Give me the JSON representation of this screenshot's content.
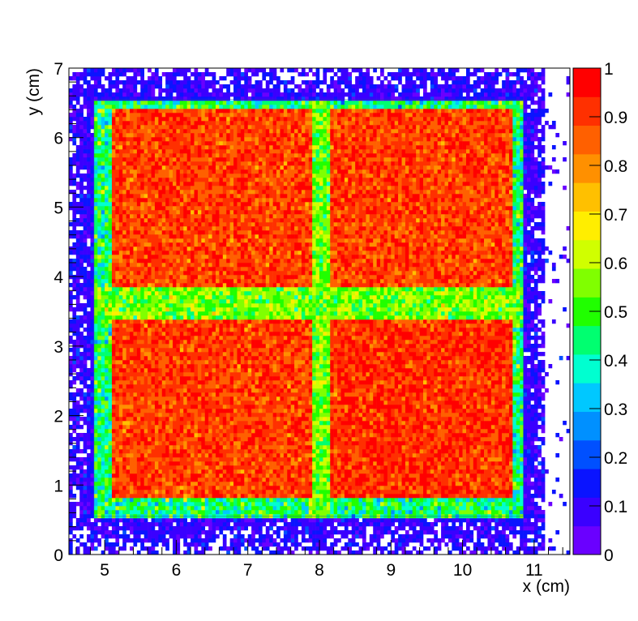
{
  "chart_data": {
    "type": "heatmap",
    "title": "",
    "xlabel": "x (cm)",
    "ylabel": "y (cm)",
    "xlim": [
      4.5,
      11.5
    ],
    "ylim": [
      0,
      7
    ],
    "x_ticks": [
      5,
      6,
      7,
      8,
      9,
      10,
      11
    ],
    "y_ticks": [
      0,
      1,
      2,
      3,
      4,
      5,
      6,
      7
    ],
    "zlim": [
      0,
      1
    ],
    "colorbar_ticks": [
      "0",
      "0.1",
      "0.2",
      "0.3",
      "0.4",
      "0.5",
      "0.6",
      "0.7",
      "0.8",
      "0.9",
      "1"
    ],
    "colorbar_values": [
      0,
      0.1,
      0.2,
      0.3,
      0.4,
      0.5,
      0.6,
      0.7,
      0.8,
      0.9,
      1
    ],
    "palette": [
      "#6a00ff",
      "#3a00ff",
      "#0a14ff",
      "#0050ff",
      "#0090ff",
      "#00c8ff",
      "#00ffd0",
      "#00ff70",
      "#20ff00",
      "#80ff00",
      "#d0ff00",
      "#ffee00",
      "#ffc000",
      "#ff9000",
      "#ff6000",
      "#ff3000",
      "#ff0000"
    ],
    "bins": [
      140,
      120
    ],
    "structure": {
      "detector_square": {
        "x": [
          4.85,
          10.85
        ],
        "y": [
          0.55,
          6.55
        ]
      },
      "high_response_quadrants": [
        {
          "x": [
            5.1,
            7.9
          ],
          "y": [
            0.8,
            3.4
          ],
          "mean": 0.9
        },
        {
          "x": [
            8.15,
            10.7
          ],
          "y": [
            0.8,
            3.4
          ],
          "mean": 0.92
        },
        {
          "x": [
            5.1,
            7.9
          ],
          "y": [
            3.85,
            6.4
          ],
          "mean": 0.9
        },
        {
          "x": [
            8.15,
            10.7
          ],
          "y": [
            3.85,
            6.4
          ],
          "mean": 0.9
        }
      ],
      "gap_lines": {
        "vertical_x": 8.0,
        "horizontal_y": 3.6,
        "mean": 0.55
      },
      "border_frame_mean": 0.45,
      "outer_region_mean": 0.1
    }
  }
}
